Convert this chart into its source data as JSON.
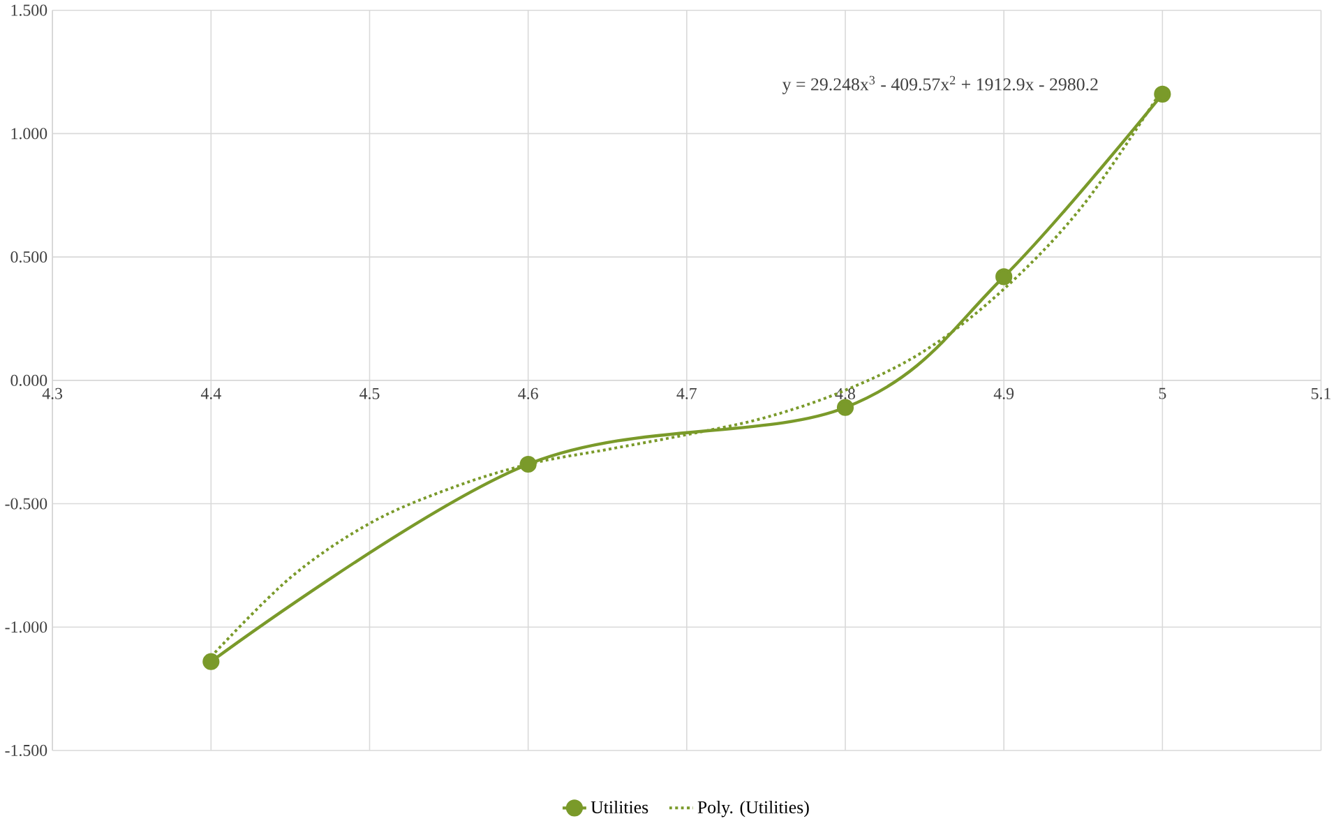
{
  "chart_data": {
    "type": "line",
    "x": [
      4.4,
      4.6,
      4.8,
      4.9,
      5
    ],
    "series": [
      {
        "name": "Utilities",
        "color": "#7a9a2a",
        "marker": "circle",
        "line_style": "solid",
        "values": [
          -1.14,
          -0.34,
          -0.11,
          0.42,
          1.16
        ]
      },
      {
        "name": "Poly. (Utilities)",
        "color": "#7a9a2a",
        "marker": "none",
        "line_style": "dotted",
        "x": [
          4.4,
          4.45,
          4.5,
          4.55,
          4.6,
          4.65,
          4.7,
          4.75,
          4.8,
          4.85,
          4.9,
          4.95,
          5
        ],
        "values": [
          -1.12,
          -0.8,
          -0.58,
          -0.44,
          -0.34,
          -0.28,
          -0.22,
          -0.15,
          -0.04,
          0.12,
          0.37,
          0.71,
          1.18
        ]
      }
    ],
    "xlim": [
      4.3,
      5.1
    ],
    "xticks": [
      4.3,
      4.4,
      4.5,
      4.6,
      4.7,
      4.8,
      4.9,
      5,
      5.1
    ],
    "ylim": [
      -1.5,
      1.5
    ],
    "yticks": [
      {
        "value": -1.5,
        "label": "-1.500"
      },
      {
        "value": -1,
        "label": "-1.000"
      },
      {
        "value": -0.5,
        "label": "-0.500"
      },
      {
        "value": 0,
        "label": "0.000"
      },
      {
        "value": 0.5,
        "label": "0.500"
      },
      {
        "value": 1,
        "label": "1.000"
      },
      {
        "value": 1.5,
        "label": "1.500"
      }
    ],
    "annotations": [
      "y = 29.248x$^{3}$ - 409.57x$^{2}$ + 1912.9x - 2980.2"
    ],
    "grid": true,
    "legend": "bottom"
  }
}
